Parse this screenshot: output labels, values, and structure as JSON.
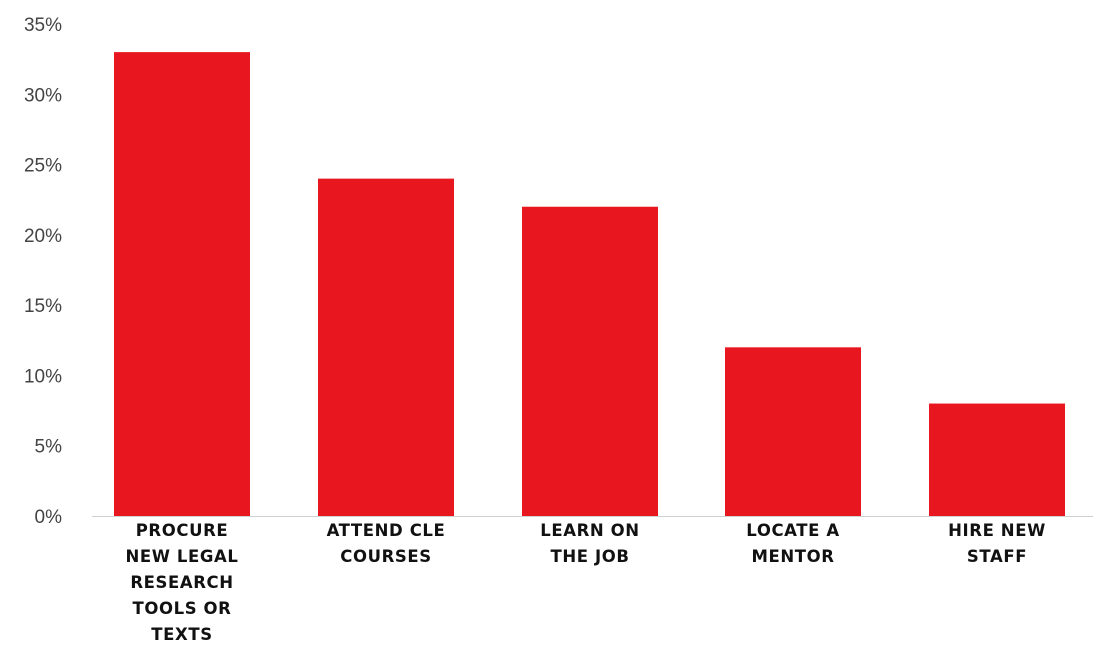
{
  "chart_data": {
    "type": "bar",
    "title": "",
    "xlabel": "",
    "ylabel": "",
    "categories": [
      [
        "PROCURE",
        "NEW LEGAL",
        "RESEARCH",
        "TOOLS OR",
        "TEXTS"
      ],
      [
        "ATTEND CLE",
        "COURSES"
      ],
      [
        "LEARN ON",
        "THE JOB"
      ],
      [
        "LOCATE A",
        "MENTOR"
      ],
      [
        "HIRE NEW",
        "STAFF"
      ]
    ],
    "values": [
      33,
      24,
      22,
      12,
      8
    ],
    "value_unit": "%",
    "ylim": [
      0,
      35
    ],
    "y_ticks": [
      "0%",
      "5%",
      "10%",
      "15%",
      "20%",
      "25%",
      "30%",
      "35%"
    ],
    "y_tick_values": [
      0,
      5,
      10,
      15,
      20,
      25,
      30,
      35
    ],
    "grid": false,
    "legend": "none",
    "bar_color": "#e8171f"
  }
}
